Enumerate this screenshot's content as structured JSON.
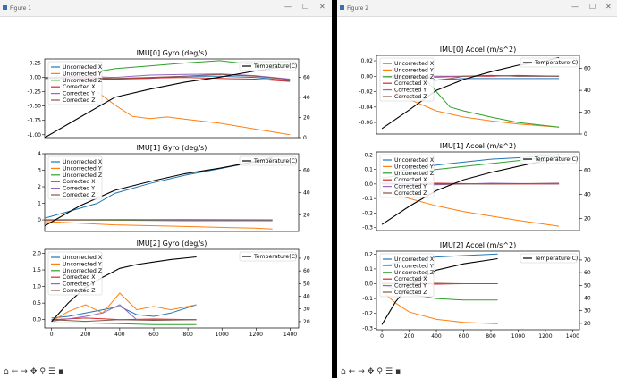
{
  "windows": [
    {
      "title": "Figure 1",
      "controls": [
        "—",
        "☐",
        "✕"
      ],
      "toolbar_icons": [
        "home-icon",
        "back-icon",
        "forward-icon",
        "pan-icon",
        "zoom-icon",
        "configure-icon",
        "save-icon"
      ]
    },
    {
      "title": "Figure 2",
      "controls": [
        "—",
        "☐",
        "✕"
      ],
      "toolbar_icons": [
        "home-icon",
        "back-icon",
        "forward-icon",
        "pan-icon",
        "zoom-icon",
        "configure-icon",
        "save-icon"
      ]
    }
  ],
  "colors": {
    "uncorrected_x": "#1f77b4",
    "uncorrected_y": "#ff7f0e",
    "uncorrected_z": "#2ca02c",
    "corrected_x": "#d62728",
    "corrected_y": "#9467bd",
    "corrected_z": "#8c564b",
    "temperature": "#000000"
  },
  "chart_data": [
    {
      "type": "line",
      "title": "IMU[0] Gyro (deg/s)",
      "xlim": [
        0,
        1450
      ],
      "ylim": [
        -1.05,
        0.32
      ],
      "yticks": [
        "0.25",
        "0.00",
        "-0.25",
        "-0.50",
        "-0.75",
        "-1.00"
      ],
      "ytick_values": [
        0.25,
        0,
        -0.25,
        -0.5,
        -0.75,
        -1.0
      ],
      "y2lim": [
        0,
        78
      ],
      "y2ticks": [
        "60",
        "40",
        "20",
        "0"
      ],
      "y2tick_values": [
        60,
        40,
        20,
        0
      ],
      "xticks": [],
      "series": [
        {
          "name": "Uncorrected X",
          "x": [
            0,
            200,
            400,
            600,
            800,
            1000,
            1200,
            1400
          ],
          "y": [
            -0.02,
            -0.03,
            -0.03,
            -0.02,
            0.02,
            0.02,
            0.0,
            -0.06
          ]
        },
        {
          "name": "Uncorrected Y",
          "x": [
            300,
            400,
            500,
            600,
            700,
            800,
            1000,
            1200,
            1400
          ],
          "y": [
            -0.25,
            -0.48,
            -0.68,
            -0.72,
            -0.69,
            -0.73,
            -0.8,
            -0.9,
            -1.0
          ]
        },
        {
          "name": "Uncorrected Z",
          "x": [
            300,
            400,
            600,
            800,
            1000,
            1200,
            1400
          ],
          "y": [
            0.1,
            0.15,
            0.2,
            0.25,
            0.29,
            0.22,
            0.22
          ]
        },
        {
          "name": "Corrected X",
          "x": [
            0,
            200,
            400,
            600,
            800,
            1000,
            1200,
            1400
          ],
          "y": [
            0.0,
            -0.01,
            -0.03,
            -0.01,
            0.0,
            -0.02,
            -0.03,
            -0.07
          ]
        },
        {
          "name": "Corrected Y",
          "x": [
            0,
            200,
            400,
            600,
            800,
            1000,
            1200,
            1400
          ],
          "y": [
            0.0,
            0.02,
            0.0,
            0.04,
            0.05,
            0.06,
            0.03,
            -0.03
          ]
        },
        {
          "name": "Corrected Z",
          "x": [
            0,
            200,
            400,
            600,
            800,
            1000,
            1200,
            1400
          ],
          "y": [
            -0.01,
            0.0,
            -0.02,
            0.0,
            0.02,
            0.05,
            0.02,
            -0.04
          ]
        }
      ],
      "secondary": {
        "name": "Temperature(C)",
        "x": [
          0,
          200,
          400,
          600,
          800,
          1000,
          1200,
          1350
        ],
        "y": [
          0,
          20,
          40,
          48,
          55,
          60,
          66,
          70
        ]
      }
    },
    {
      "type": "line",
      "title": "IMU[1] Gyro (deg/s)",
      "xlim": [
        0,
        1450
      ],
      "ylim": [
        -0.7,
        4.0
      ],
      "yticks": [
        "4",
        "3",
        "2",
        "1",
        "0"
      ],
      "ytick_values": [
        4,
        3,
        2,
        1,
        0
      ],
      "y2lim": [
        5,
        75
      ],
      "y2ticks": [
        "60",
        "40",
        "20"
      ],
      "y2tick_values": [
        60,
        40,
        20
      ],
      "xticks": [],
      "series": [
        {
          "name": "Uncorrected X",
          "x": [
            0,
            100,
            200,
            300,
            400,
            600,
            800,
            1000,
            1200,
            1300
          ],
          "y": [
            0.1,
            0.4,
            0.7,
            1.0,
            1.6,
            2.2,
            2.7,
            3.1,
            3.5,
            3.8
          ]
        },
        {
          "name": "Uncorrected Y",
          "x": [
            0,
            200,
            400,
            600,
            800,
            1000,
            1200,
            1300
          ],
          "y": [
            -0.1,
            -0.2,
            -0.3,
            -0.35,
            -0.4,
            -0.45,
            -0.5,
            -0.55
          ]
        },
        {
          "name": "Uncorrected Z",
          "x": [
            0,
            400,
            800,
            1300
          ],
          "y": [
            0.0,
            -0.02,
            -0.05,
            -0.05
          ]
        },
        {
          "name": "Corrected X",
          "x": [
            0,
            400,
            800,
            1300
          ],
          "y": [
            0.0,
            0.02,
            0.0,
            0.0
          ]
        },
        {
          "name": "Corrected Y",
          "x": [
            0,
            400,
            800,
            1300
          ],
          "y": [
            0.02,
            0.0,
            -0.02,
            -0.02
          ]
        },
        {
          "name": "Corrected Z",
          "x": [
            0,
            400,
            800,
            1300
          ],
          "y": [
            -0.02,
            0.0,
            0.02,
            0.0
          ]
        }
      ],
      "secondary": {
        "name": "Temperature(C)",
        "x": [
          0,
          200,
          400,
          600,
          800,
          1000,
          1200,
          1300
        ],
        "y": [
          10,
          28,
          42,
          50,
          57,
          62,
          68,
          71
        ]
      }
    },
    {
      "type": "line",
      "title": "IMU[2] Gyro (deg/s)",
      "xlim": [
        -40,
        1450
      ],
      "ylim": [
        -0.25,
        2.12
      ],
      "yticks": [
        "2.0",
        "1.5",
        "1.0",
        "0.5",
        "0.0"
      ],
      "ytick_values": [
        2.0,
        1.5,
        1.0,
        0.5,
        0.0
      ],
      "y2lim": [
        15,
        77
      ],
      "y2ticks": [
        "70",
        "60",
        "50",
        "40",
        "30",
        "20"
      ],
      "y2tick_values": [
        70,
        60,
        50,
        40,
        30,
        20
      ],
      "xticks": [
        "0",
        "200",
        "400",
        "600",
        "800",
        "1000",
        "1200",
        "1400"
      ],
      "xtick_values": [
        0,
        200,
        400,
        600,
        800,
        1000,
        1200,
        1400
      ],
      "series": [
        {
          "name": "Uncorrected X",
          "x": [
            0,
            100,
            200,
            300,
            400,
            500,
            600,
            700,
            850
          ],
          "y": [
            0.05,
            0.1,
            0.2,
            0.3,
            0.4,
            0.15,
            0.1,
            0.2,
            0.45
          ]
        },
        {
          "name": "Uncorrected Y",
          "x": [
            0,
            100,
            200,
            300,
            400,
            500,
            600,
            700,
            850
          ],
          "y": [
            -0.05,
            0.25,
            0.45,
            0.2,
            0.8,
            0.3,
            0.4,
            0.3,
            0.45
          ]
        },
        {
          "name": "Uncorrected Z",
          "x": [
            0,
            200,
            400,
            600,
            850
          ],
          "y": [
            -0.1,
            -0.1,
            -0.12,
            -0.15,
            -0.15
          ]
        },
        {
          "name": "Corrected X",
          "x": [
            0,
            200,
            400,
            600,
            850
          ],
          "y": [
            0.0,
            0.05,
            0.0,
            0.02,
            0.0
          ]
        },
        {
          "name": "Corrected Y",
          "x": [
            0,
            200,
            300,
            400,
            500,
            850
          ],
          "y": [
            -0.05,
            0.1,
            0.2,
            0.45,
            0.0,
            0.0
          ]
        },
        {
          "name": "Corrected Z",
          "x": [
            0,
            200,
            400,
            600,
            850
          ],
          "y": [
            0.0,
            -0.05,
            0.0,
            -0.02,
            0.0
          ]
        }
      ],
      "secondary": {
        "name": "Temperature(C)",
        "x": [
          0,
          100,
          200,
          300,
          400,
          500,
          600,
          700,
          850
        ],
        "y": [
          20,
          35,
          47,
          55,
          62,
          65,
          67,
          69,
          71
        ]
      }
    },
    {
      "type": "line",
      "title": "IMU[0] Accel (m/s^2)",
      "xlim": [
        -40,
        1450
      ],
      "ylim": [
        -0.075,
        0.027
      ],
      "yticks": [
        "0.02",
        "0.00",
        "-0.02",
        "-0.04",
        "-0.06"
      ],
      "ytick_values": [
        0.02,
        0,
        -0.02,
        -0.04,
        -0.06
      ],
      "y2lim": [
        0,
        72
      ],
      "y2ticks": [
        "60",
        "40",
        "20",
        "0"
      ],
      "y2tick_values": [
        60,
        40,
        20,
        0
      ],
      "xticks": [],
      "series": [
        {
          "name": "Uncorrected X",
          "x": [
            0,
            200,
            400,
            600,
            800,
            1000,
            1300
          ],
          "y": [
            0.0,
            -0.005,
            -0.005,
            -0.003,
            -0.003,
            -0.003,
            -0.003
          ]
        },
        {
          "name": "Uncorrected Y",
          "x": [
            0,
            200,
            400,
            600,
            800,
            1000,
            1300
          ],
          "y": [
            -0.012,
            -0.03,
            -0.045,
            -0.053,
            -0.058,
            -0.062,
            -0.066
          ]
        },
        {
          "name": "Uncorrected Z",
          "x": [
            0,
            300,
            400,
            450,
            500,
            600,
            800,
            1000,
            1300
          ],
          "y": [
            0.0,
            0.0,
            -0.02,
            -0.03,
            -0.04,
            -0.045,
            -0.053,
            -0.06,
            -0.066
          ]
        },
        {
          "name": "Corrected X",
          "x": [
            0,
            200,
            400,
            600,
            800,
            1000,
            1300
          ],
          "y": [
            0.0,
            0.001,
            -0.001,
            0.0,
            0.0,
            0.001,
            0.0
          ]
        },
        {
          "name": "Corrected Y",
          "x": [
            0,
            200,
            400,
            600,
            800,
            1000,
            1300
          ],
          "y": [
            0.0,
            -0.001,
            0.0,
            0.0,
            0.001,
            0.0,
            0.0
          ]
        },
        {
          "name": "Corrected Z",
          "x": [
            0,
            300,
            400,
            500,
            600,
            800,
            1000,
            1300
          ],
          "y": [
            0.0,
            0.0,
            -0.005,
            -0.003,
            0.0,
            0.001,
            0.0,
            0.0
          ]
        }
      ],
      "secondary": {
        "name": "Temperature(C)",
        "x": [
          0,
          200,
          400,
          600,
          800,
          1000,
          1200,
          1300
        ],
        "y": [
          5,
          22,
          40,
          50,
          57,
          63,
          67,
          70
        ]
      }
    },
    {
      "type": "line",
      "title": "IMU[1] Accel (m/s^2)",
      "xlim": [
        -40,
        1450
      ],
      "ylim": [
        -0.32,
        0.22
      ],
      "yticks": [
        "0.2",
        "0.1",
        "0.0",
        "-0.1",
        "-0.2",
        "-0.3"
      ],
      "ytick_values": [
        0.2,
        0.1,
        0,
        -0.1,
        -0.2,
        -0.3
      ],
      "y2lim": [
        10,
        75
      ],
      "y2ticks": [
        "60",
        "40",
        "20"
      ],
      "y2tick_values": [
        60,
        40,
        20
      ],
      "xticks": [],
      "series": [
        {
          "name": "Uncorrected X",
          "x": [
            0,
            200,
            400,
            600,
            800,
            1000,
            1300
          ],
          "y": [
            0.07,
            0.1,
            0.13,
            0.15,
            0.17,
            0.18,
            0.2
          ]
        },
        {
          "name": "Uncorrected Y",
          "x": [
            0,
            200,
            400,
            600,
            800,
            1000,
            1300
          ],
          "y": [
            -0.05,
            -0.1,
            -0.15,
            -0.19,
            -0.22,
            -0.25,
            -0.29
          ]
        },
        {
          "name": "Uncorrected Z",
          "x": [
            0,
            200,
            400,
            600,
            800,
            1000,
            1300
          ],
          "y": [
            0.04,
            0.07,
            0.1,
            0.12,
            0.14,
            0.16,
            0.19
          ]
        },
        {
          "name": "Corrected X",
          "x": [
            0,
            400,
            800,
            1300
          ],
          "y": [
            0.0,
            0.005,
            0.0,
            0.0
          ]
        },
        {
          "name": "Corrected Y",
          "x": [
            0,
            400,
            800,
            1300
          ],
          "y": [
            0.0,
            -0.005,
            0.005,
            0.0
          ]
        },
        {
          "name": "Corrected Z",
          "x": [
            0,
            400,
            800,
            1300
          ],
          "y": [
            0.005,
            0.0,
            0.0,
            0.005
          ]
        }
      ],
      "secondary": {
        "name": "Temperature(C)",
        "x": [
          0,
          200,
          400,
          600,
          800,
          1000,
          1200,
          1300
        ],
        "y": [
          15,
          30,
          43,
          52,
          58,
          63,
          68,
          71
        ]
      }
    },
    {
      "type": "line",
      "title": "IMU[2] Accel (m/s^2)",
      "xlim": [
        -40,
        1450
      ],
      "ylim": [
        -0.31,
        0.22
      ],
      "yticks": [
        "0.2",
        "0.1",
        "0.0",
        "-0.1",
        "-0.2",
        "-0.3"
      ],
      "ytick_values": [
        0.2,
        0.1,
        0,
        -0.1,
        -0.2,
        -0.3
      ],
      "y2lim": [
        15,
        77
      ],
      "y2ticks": [
        "70",
        "60",
        "50",
        "40",
        "30",
        "20"
      ],
      "y2tick_values": [
        70,
        60,
        50,
        40,
        30,
        20
      ],
      "xticks": [
        "0",
        "200",
        "400",
        "600",
        "800",
        "1000",
        "1200",
        "1400"
      ],
      "xtick_values": [
        0,
        200,
        400,
        600,
        800,
        1000,
        1200,
        1400
      ],
      "series": [
        {
          "name": "Uncorrected X",
          "x": [
            0,
            100,
            200,
            400,
            600,
            850
          ],
          "y": [
            0.12,
            0.14,
            0.16,
            0.18,
            0.19,
            0.2
          ]
        },
        {
          "name": "Uncorrected Y",
          "x": [
            0,
            100,
            200,
            400,
            600,
            850
          ],
          "y": [
            -0.05,
            -0.13,
            -0.19,
            -0.24,
            -0.26,
            -0.27
          ]
        },
        {
          "name": "Uncorrected Z",
          "x": [
            0,
            100,
            200,
            400,
            600,
            850
          ],
          "y": [
            0.0,
            -0.04,
            -0.07,
            -0.1,
            -0.11,
            -0.11
          ]
        },
        {
          "name": "Corrected X",
          "x": [
            0,
            200,
            400,
            600,
            850
          ],
          "y": [
            0.0,
            0.0,
            -0.003,
            0.0,
            0.0
          ]
        },
        {
          "name": "Corrected Y",
          "x": [
            0,
            200,
            400,
            600,
            850
          ],
          "y": [
            0.0,
            0.005,
            0.0,
            0.0,
            0.0
          ]
        },
        {
          "name": "Corrected Z",
          "x": [
            0,
            200,
            400,
            600,
            850
          ],
          "y": [
            0.005,
            0.0,
            0.003,
            0.0,
            0.0
          ]
        }
      ],
      "secondary": {
        "name": "Temperature(C)",
        "x": [
          0,
          100,
          200,
          400,
          600,
          850
        ],
        "y": [
          19,
          37,
          50,
          62,
          67,
          71
        ]
      }
    }
  ]
}
